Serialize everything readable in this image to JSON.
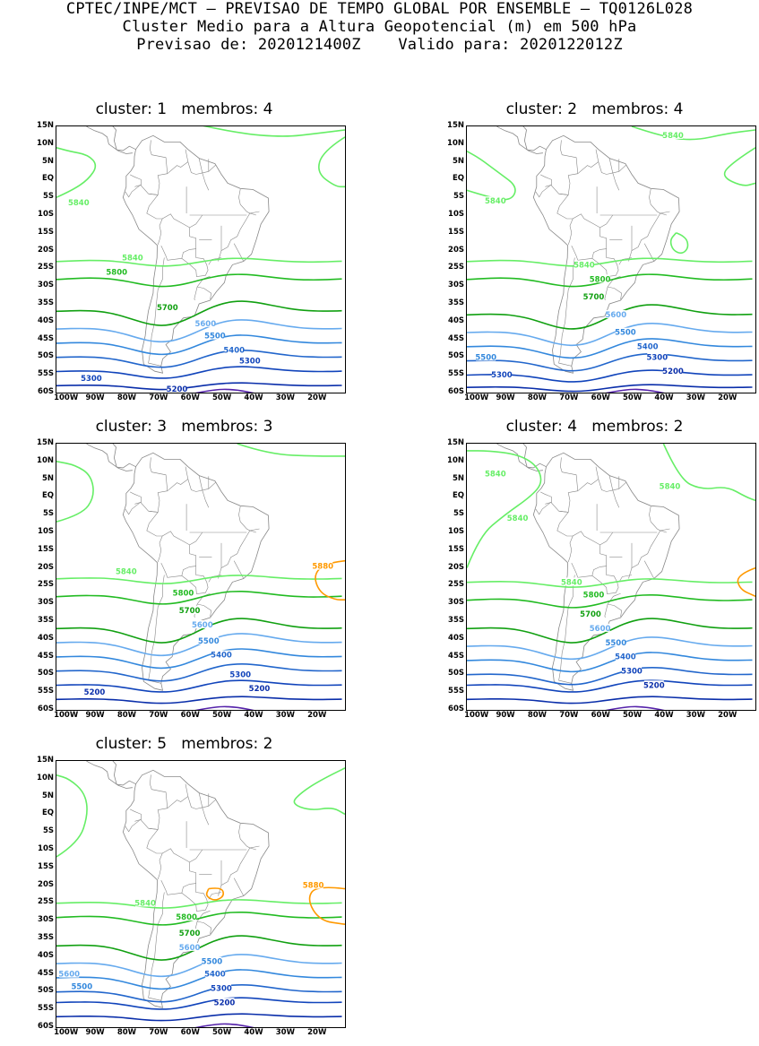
{
  "header": {
    "line1": "CPTEC/INPE/MCT – PREVISAO DE TEMPO GLOBAL POR ENSEMBLE – TQ0126L028",
    "line2": "Cluster Medio para a Altura Geopotencial (m) em 500 hPa",
    "line3": "Previsao de: 2020121400Z    Valido para: 2020122012Z"
  },
  "axes": {
    "lat_ticks": [
      "15N",
      "10N",
      "5N",
      "EQ",
      "5S",
      "10S",
      "15S",
      "20S",
      "25S",
      "30S",
      "35S",
      "40S",
      "45S",
      "50S",
      "55S",
      "60S"
    ],
    "lon_ticks": [
      "100W",
      "90W",
      "80W",
      "70W",
      "60W",
      "50W",
      "40W",
      "30W",
      "20W"
    ]
  },
  "colors": {
    "c5880": "#ff9900",
    "c5840": "#66ee66",
    "c5800": "#22bb22",
    "c5700": "#11a011",
    "c5600": "#66aaee",
    "c5500": "#3388dd",
    "c5400": "#2266cc",
    "c5300": "#1144bb",
    "c5200": "#0a2eaa",
    "c5100": "#5522aa",
    "coast": "#888888"
  },
  "panels": [
    {
      "title": "cluster: 1   membros: 4",
      "labels": [
        {
          "text": "5840",
          "lon": -95,
          "lat": -6.5,
          "level": 5840
        },
        {
          "text": "5840",
          "lon": -78,
          "lat": -22,
          "level": 5840
        },
        {
          "text": "5800",
          "lon": -83,
          "lat": -26,
          "level": 5800
        },
        {
          "text": "5700",
          "lon": -67,
          "lat": -36,
          "level": 5700
        },
        {
          "text": "5600",
          "lon": -55,
          "lat": -40.5,
          "level": 5600
        },
        {
          "text": "5500",
          "lon": -52,
          "lat": -44,
          "level": 5500
        },
        {
          "text": "5400",
          "lon": -46,
          "lat": -48,
          "level": 5400
        },
        {
          "text": "5300",
          "lon": -41,
          "lat": -51,
          "level": 5300
        },
        {
          "text": "5300",
          "lon": -91,
          "lat": -56,
          "level": 5300
        },
        {
          "text": "5200",
          "lon": -64,
          "lat": -59,
          "level": 5200
        }
      ]
    },
    {
      "title": "cluster: 2   membros: 4",
      "labels": [
        {
          "text": "5840",
          "lon": -37,
          "lat": 12.5,
          "level": 5840
        },
        {
          "text": "5840",
          "lon": -93,
          "lat": -6,
          "level": 5840
        },
        {
          "text": "5840",
          "lon": -65,
          "lat": -24,
          "level": 5840
        },
        {
          "text": "5800",
          "lon": -60,
          "lat": -28,
          "level": 5800
        },
        {
          "text": "5700",
          "lon": -62,
          "lat": -33,
          "level": 5700
        },
        {
          "text": "5600",
          "lon": -55,
          "lat": -38,
          "level": 5600
        },
        {
          "text": "5500",
          "lon": -52,
          "lat": -43,
          "level": 5500
        },
        {
          "text": "5400",
          "lon": -45,
          "lat": -47,
          "level": 5400
        },
        {
          "text": "5300",
          "lon": -42,
          "lat": -50,
          "level": 5300
        },
        {
          "text": "5200",
          "lon": -37,
          "lat": -54,
          "level": 5200
        },
        {
          "text": "5500",
          "lon": -96,
          "lat": -50,
          "level": 5500
        },
        {
          "text": "5300",
          "lon": -91,
          "lat": -55,
          "level": 5300
        }
      ]
    },
    {
      "title": "cluster: 3   membros: 3",
      "labels": [
        {
          "text": "5880",
          "lon": -18,
          "lat": -19.5,
          "level": 5880
        },
        {
          "text": "5840",
          "lon": -80,
          "lat": -21,
          "level": 5840
        },
        {
          "text": "5800",
          "lon": -62,
          "lat": -27,
          "level": 5800
        },
        {
          "text": "5700",
          "lon": -60,
          "lat": -32,
          "level": 5700
        },
        {
          "text": "5600",
          "lon": -56,
          "lat": -36,
          "level": 5600
        },
        {
          "text": "5500",
          "lon": -54,
          "lat": -40.5,
          "level": 5500
        },
        {
          "text": "5400",
          "lon": -50,
          "lat": -44.5,
          "level": 5400
        },
        {
          "text": "5300",
          "lon": -44,
          "lat": -50,
          "level": 5300
        },
        {
          "text": "5200",
          "lon": -38,
          "lat": -54,
          "level": 5200
        },
        {
          "text": "5200",
          "lon": -90,
          "lat": -55,
          "level": 5200
        }
      ]
    },
    {
      "title": "cluster: 4   membros: 2",
      "labels": [
        {
          "text": "5840",
          "lon": -93,
          "lat": 6.5,
          "level": 5840
        },
        {
          "text": "5840",
          "lon": -38,
          "lat": 3,
          "level": 5840
        },
        {
          "text": "5840",
          "lon": -86,
          "lat": -6,
          "level": 5840
        },
        {
          "text": "5840",
          "lon": -69,
          "lat": -24,
          "level": 5840
        },
        {
          "text": "5800",
          "lon": -62,
          "lat": -27.5,
          "level": 5800
        },
        {
          "text": "5700",
          "lon": -63,
          "lat": -33,
          "level": 5700
        },
        {
          "text": "5600",
          "lon": -60,
          "lat": -37,
          "level": 5600
        },
        {
          "text": "5500",
          "lon": -55,
          "lat": -41,
          "level": 5500
        },
        {
          "text": "5400",
          "lon": -52,
          "lat": -45,
          "level": 5400
        },
        {
          "text": "5300",
          "lon": -50,
          "lat": -49,
          "level": 5300
        },
        {
          "text": "5200",
          "lon": -43,
          "lat": -53,
          "level": 5200
        }
      ]
    },
    {
      "title": "cluster: 5   membros: 2",
      "labels": [
        {
          "text": "5880",
          "lon": -21,
          "lat": -20,
          "level": 5880
        },
        {
          "text": "5840",
          "lon": -74,
          "lat": -25,
          "level": 5840
        },
        {
          "text": "5800",
          "lon": -61,
          "lat": -29,
          "level": 5800
        },
        {
          "text": "5700",
          "lon": -60,
          "lat": -33.5,
          "level": 5700
        },
        {
          "text": "5600",
          "lon": -60,
          "lat": -37.5,
          "level": 5600
        },
        {
          "text": "5500",
          "lon": -53,
          "lat": -41.5,
          "level": 5500
        },
        {
          "text": "5400",
          "lon": -52,
          "lat": -45,
          "level": 5400
        },
        {
          "text": "5300",
          "lon": -50,
          "lat": -49,
          "level": 5300
        },
        {
          "text": "5200",
          "lon": -49,
          "lat": -53,
          "level": 5200
        },
        {
          "text": "5600",
          "lon": -98,
          "lat": -45,
          "level": 5600
        },
        {
          "text": "5500",
          "lon": -94,
          "lat": -48.5,
          "level": 5500
        }
      ]
    }
  ]
}
